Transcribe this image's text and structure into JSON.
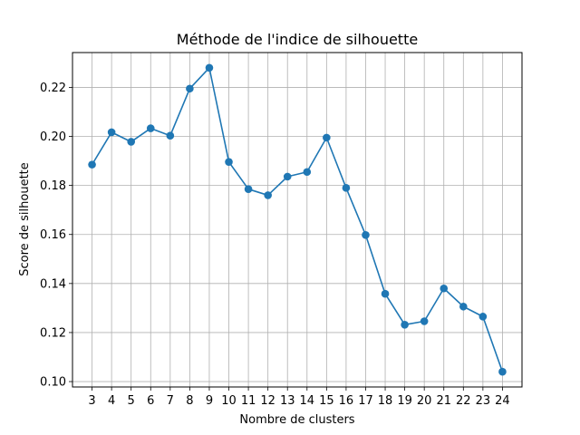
{
  "chart_data": {
    "type": "line",
    "title": "Méthode de l'indice de silhouette",
    "xlabel": "Nombre de clusters",
    "ylabel": "Score de silhouette",
    "x": [
      3,
      4,
      5,
      6,
      7,
      8,
      9,
      10,
      11,
      12,
      13,
      14,
      15,
      16,
      17,
      18,
      19,
      20,
      21,
      22,
      23,
      24
    ],
    "series": [
      {
        "values": [
          0.1885,
          0.2017,
          0.1978,
          0.2033,
          0.2003,
          0.2195,
          0.228,
          0.1896,
          0.1785,
          0.176,
          0.1836,
          0.1855,
          0.1995,
          0.179,
          0.1598,
          0.1358,
          0.1232,
          0.1246,
          0.138,
          0.1306,
          0.1265,
          0.104
        ],
        "color": "#1f77b4",
        "marker": "circle"
      }
    ],
    "xlim": [
      2.0,
      25.0
    ],
    "ylim": [
      0.0978,
      0.2342
    ],
    "yticks": [
      0.1,
      0.12,
      0.14,
      0.16,
      0.18,
      0.2,
      0.22
    ],
    "ytick_labels": [
      "0.10",
      "0.12",
      "0.14",
      "0.16",
      "0.18",
      "0.20",
      "0.22"
    ],
    "grid": true
  }
}
